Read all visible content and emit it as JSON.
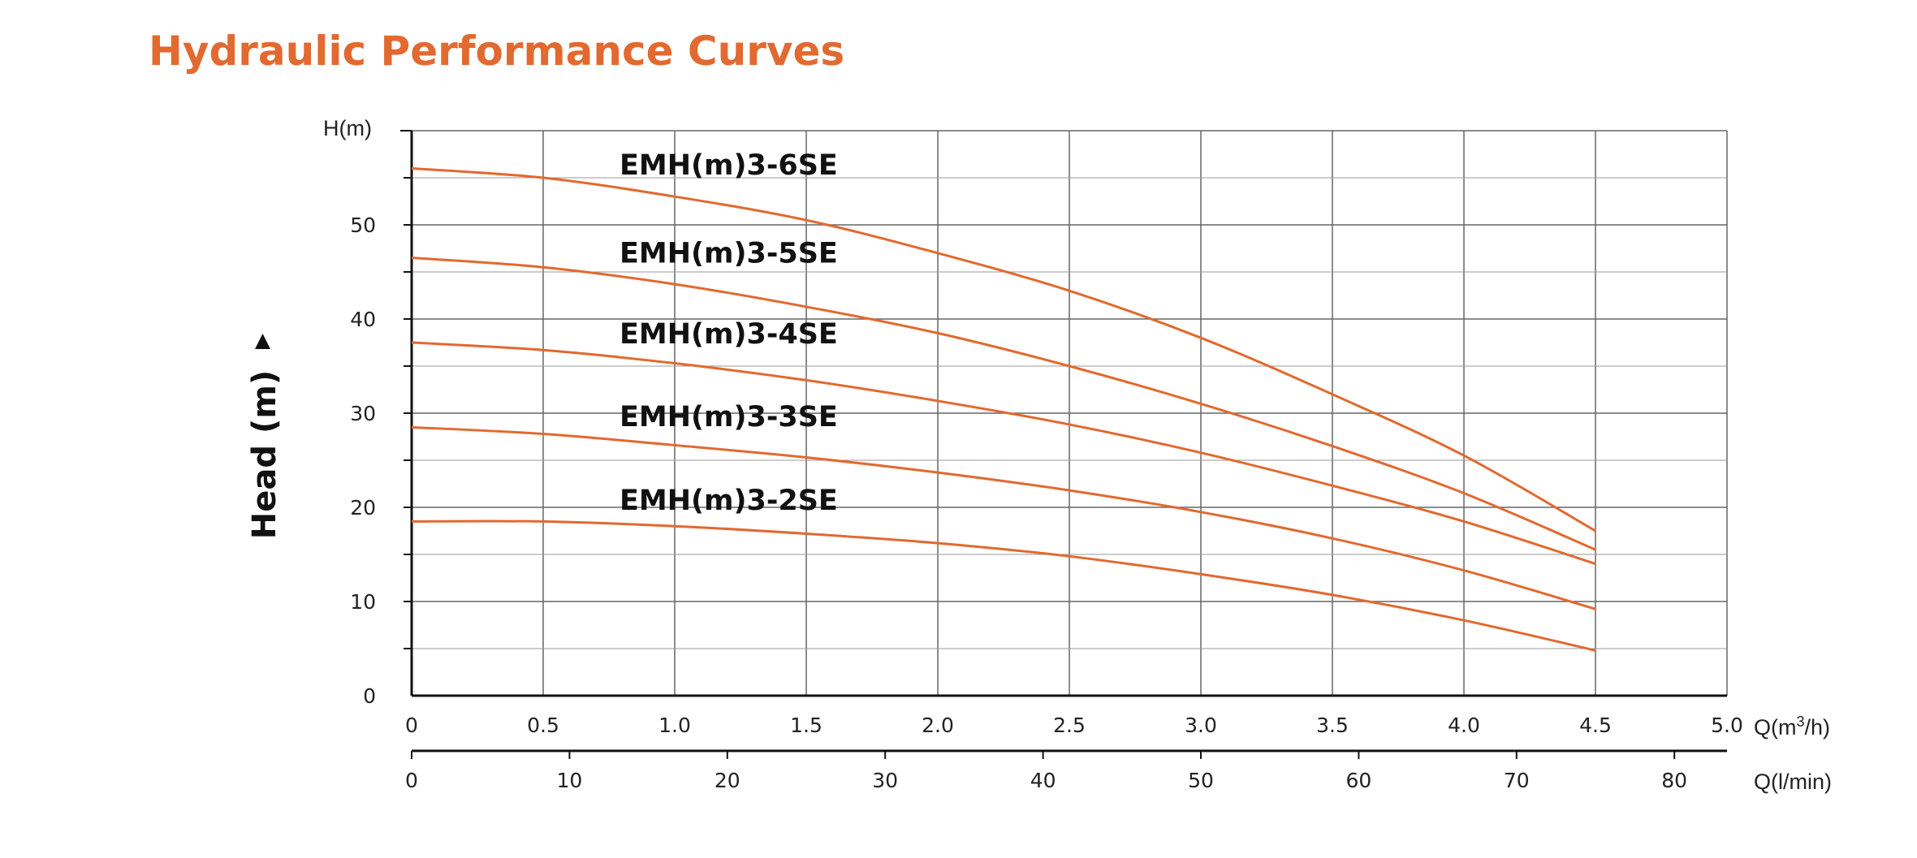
{
  "title": "Hydraulic Performance Curves",
  "colors": {
    "title": "#e2692f",
    "curve": "#e2692f",
    "grid": "#666666",
    "text": "#222222"
  },
  "chart_data": {
    "type": "line",
    "title": "Hydraulic Performance Curves",
    "ylabel": "Head (m)",
    "y_axis_unit": "H(m)",
    "x_axis_unit_primary": "Q(m³/h)",
    "x_axis_unit_secondary": "Q(l/min)",
    "xlim": [
      0,
      5.0
    ],
    "ylim": [
      0,
      60
    ],
    "x_ticks": [
      "0",
      "0.5",
      "1.0",
      "1.5",
      "2.0",
      "2.5",
      "3.0",
      "3.5",
      "4.0",
      "4.5",
      "5.0"
    ],
    "x_ticks_secondary": [
      "0",
      "10",
      "20",
      "30",
      "40",
      "50",
      "60",
      "70",
      "80"
    ],
    "y_ticks": [
      "0",
      "10",
      "20",
      "30",
      "40",
      "50"
    ],
    "grid": true,
    "series": [
      {
        "name": "EMH(m)3-6SE",
        "x": [
          0,
          0.5,
          1.0,
          1.5,
          2.0,
          2.5,
          3.0,
          3.5,
          4.0,
          4.5
        ],
        "y": [
          56,
          55,
          53,
          50.5,
          47,
          43,
          38,
          32,
          25.5,
          17.5
        ]
      },
      {
        "name": "EMH(m)3-5SE",
        "x": [
          0,
          0.5,
          1.0,
          1.5,
          2.0,
          2.5,
          3.0,
          3.5,
          4.0,
          4.5
        ],
        "y": [
          46.5,
          45.5,
          43.7,
          41.3,
          38.5,
          35,
          31,
          26.5,
          21.5,
          15.5
        ]
      },
      {
        "name": "EMH(m)3-4SE",
        "x": [
          0,
          0.5,
          1.0,
          1.5,
          2.0,
          2.5,
          3.0,
          3.5,
          4.0,
          4.5
        ],
        "y": [
          37.5,
          36.7,
          35.3,
          33.5,
          31.3,
          28.8,
          25.8,
          22.3,
          18.5,
          14
        ]
      },
      {
        "name": "EMH(m)3-3SE",
        "x": [
          0,
          0.5,
          1.0,
          1.5,
          2.0,
          2.5,
          3.0,
          3.5,
          4.0,
          4.5
        ],
        "y": [
          28.5,
          27.8,
          26.6,
          25.3,
          23.7,
          21.8,
          19.5,
          16.7,
          13.3,
          9.2
        ]
      },
      {
        "name": "EMH(m)3-2SE",
        "x": [
          0,
          0.5,
          1.0,
          1.5,
          2.0,
          2.5,
          3.0,
          3.5,
          4.0,
          4.5
        ],
        "y": [
          18.5,
          18.5,
          18,
          17.2,
          16.2,
          14.8,
          12.9,
          10.7,
          8,
          4.8
        ]
      }
    ]
  }
}
